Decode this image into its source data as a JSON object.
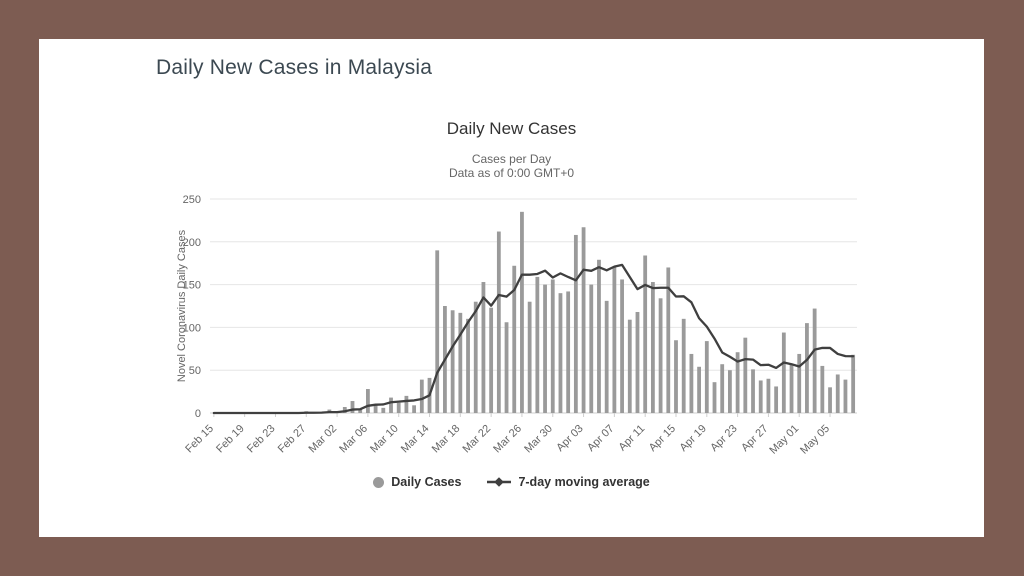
{
  "page": {
    "title": "Daily New Cases in Malaysia",
    "background_color": "#7D5C52",
    "surface_color": "#FFFFFF",
    "title_color": "#3C4952"
  },
  "chart": {
    "title": "Daily New Cases",
    "subtitle_line1": "Cases per Day",
    "subtitle_line2": "Data as of 0:00 GMT+0",
    "y_axis_title": "Novel Coronavirus Daily Cases"
  },
  "chart_data": {
    "type": "bar",
    "title": "Daily New Cases",
    "subtitle": [
      "Cases per Day",
      "Data as of 0:00 GMT+0"
    ],
    "xlabel": "",
    "ylabel": "Novel Coronavirus Daily Cases",
    "ylim": [
      0,
      250
    ],
    "yticks": [
      0,
      50,
      100,
      150,
      200,
      250
    ],
    "x_tick_every": 4,
    "grid": true,
    "legend_position": "bottom",
    "colors": {
      "bar": "#9A9A9A",
      "line": "#3F3F3F",
      "gridline": "#E6E6E6",
      "axis_line": "#CFCFCF",
      "tick_label": "#666666",
      "title": "#333333",
      "subtitle": "#666666"
    },
    "categories": [
      "Feb 15",
      "Feb 16",
      "Feb 17",
      "Feb 18",
      "Feb 19",
      "Feb 20",
      "Feb 21",
      "Feb 22",
      "Feb 23",
      "Feb 24",
      "Feb 25",
      "Feb 26",
      "Feb 27",
      "Feb 28",
      "Feb 29",
      "Mar 01",
      "Mar 02",
      "Mar 03",
      "Mar 04",
      "Mar 05",
      "Mar 06",
      "Mar 07",
      "Mar 08",
      "Mar 09",
      "Mar 10",
      "Mar 11",
      "Mar 12",
      "Mar 13",
      "Mar 14",
      "Mar 15",
      "Mar 16",
      "Mar 17",
      "Mar 18",
      "Mar 19",
      "Mar 20",
      "Mar 21",
      "Mar 22",
      "Mar 23",
      "Mar 24",
      "Mar 25",
      "Mar 26",
      "Mar 27",
      "Mar 28",
      "Mar 29",
      "Mar 30",
      "Mar 31",
      "Apr 01",
      "Apr 02",
      "Apr 03",
      "Apr 04",
      "Apr 05",
      "Apr 06",
      "Apr 07",
      "Apr 08",
      "Apr 09",
      "Apr 10",
      "Apr 11",
      "Apr 12",
      "Apr 13",
      "Apr 14",
      "Apr 15",
      "Apr 16",
      "Apr 17",
      "Apr 18",
      "Apr 19",
      "Apr 20",
      "Apr 21",
      "Apr 22",
      "Apr 23",
      "Apr 24",
      "Apr 25",
      "Apr 26",
      "Apr 27",
      "Apr 28",
      "Apr 29",
      "Apr 30",
      "May 01",
      "May 02",
      "May 03",
      "May 04",
      "May 05",
      "May 06",
      "May 07",
      "May 08"
    ],
    "series": [
      {
        "name": "Daily Cases",
        "type": "bar",
        "color": "#9A9A9A",
        "values": [
          0,
          0,
          0,
          0,
          0,
          0,
          0,
          0,
          0,
          0,
          0,
          0,
          2,
          0,
          1,
          4,
          0,
          7,
          14,
          5,
          28,
          10,
          6,
          18,
          12,
          20,
          9,
          39,
          41,
          190,
          125,
          120,
          117,
          110,
          130,
          153,
          123,
          212,
          106,
          172,
          235,
          130,
          159,
          150,
          156,
          140,
          142,
          208,
          217,
          150,
          179,
          131,
          170,
          156,
          109,
          118,
          184,
          153,
          134,
          170,
          85,
          110,
          69,
          54,
          84,
          36,
          57,
          50,
          71,
          88,
          51,
          38,
          40,
          31,
          94,
          57,
          69,
          105,
          122,
          55,
          30,
          45,
          39,
          68
        ]
      },
      {
        "name": "7-day moving average",
        "type": "line",
        "color": "#3F3F3F",
        "values": [
          0,
          0,
          0,
          0,
          0,
          0,
          0,
          0,
          0,
          0,
          0,
          0,
          0.3,
          0.3,
          0.4,
          1,
          1,
          2,
          4,
          4.4,
          8.4,
          9.7,
          10,
          12.6,
          13.3,
          14.1,
          14.7,
          16.3,
          20.7,
          47,
          62.3,
          77.7,
          91.6,
          106,
          119,
          135,
          125.4,
          137.9,
          135.9,
          143.7,
          161.6,
          161.6,
          162.4,
          166.3,
          158.3,
          163.1,
          158.9,
          155,
          167.4,
          166.1,
          170.3,
          166.7,
          171,
          173,
          158.9,
          144.7,
          149.6,
          145.9,
          146.3,
          146.3,
          136.1,
          136.3,
          129.3,
          110.7,
          100.9,
          86.9,
          70.7,
          65.7,
          60.1,
          62.9,
          62.4,
          55.9,
          56.4,
          52.7,
          59,
          57,
          54.3,
          62,
          74,
          76.1,
          76,
          69,
          66.4,
          66.3
        ]
      }
    ]
  }
}
